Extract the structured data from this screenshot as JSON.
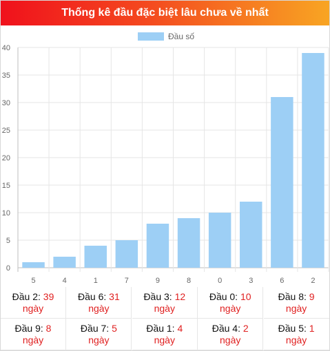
{
  "header": {
    "title": "Thống kê đầu đặc biệt lâu chưa về nhất"
  },
  "chart_data": {
    "type": "bar",
    "title": "",
    "xlabel": "",
    "ylabel": "",
    "legend": {
      "label": "Đầu số",
      "placement": "top-center"
    },
    "categories": [
      "5",
      "4",
      "1",
      "7",
      "9",
      "8",
      "0",
      "3",
      "6",
      "2"
    ],
    "values": [
      1,
      2,
      4,
      5,
      8,
      9,
      10,
      12,
      31,
      39
    ],
    "ylim": [
      0,
      40
    ],
    "yticks": [
      "0",
      "5",
      "10",
      "15",
      "20",
      "25",
      "30",
      "35",
      "40"
    ],
    "grid": true,
    "bar_color": "#9dcff5"
  },
  "stats": [
    {
      "prefix": "Đầu 2: ",
      "num": "39",
      "unit": "ngày"
    },
    {
      "prefix": "Đầu 6: ",
      "num": "31",
      "unit": "ngày"
    },
    {
      "prefix": "Đầu 3: ",
      "num": "12",
      "unit": "ngày"
    },
    {
      "prefix": "Đầu 0: ",
      "num": "10",
      "unit": "ngày"
    },
    {
      "prefix": "Đầu 8: ",
      "num": "9",
      "unit": "ngày"
    },
    {
      "prefix": "Đầu 9: ",
      "num": "8",
      "unit": "ngày"
    },
    {
      "prefix": "Đầu 7: ",
      "num": "5",
      "unit": "ngày"
    },
    {
      "prefix": "Đầu 1: ",
      "num": "4",
      "unit": "ngày"
    },
    {
      "prefix": "Đầu 4: ",
      "num": "2",
      "unit": "ngày"
    },
    {
      "prefix": "Đầu 5: ",
      "num": "1",
      "unit": "ngày"
    }
  ]
}
